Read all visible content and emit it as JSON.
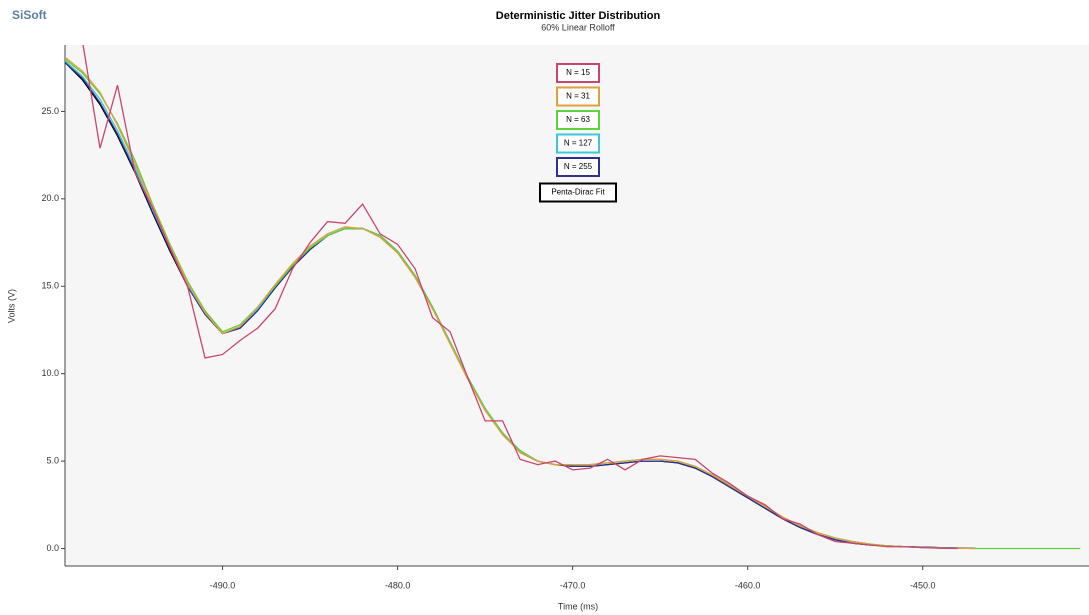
{
  "logo": "SiSoft",
  "chart_data": {
    "type": "line",
    "title": "Deterministic Jitter Distribution",
    "subtitle": "60% Linear Rolloff",
    "x_label": "Time (ms)",
    "y_label": "Volts (V)",
    "x": [
      -499,
      -498,
      -497,
      -496,
      -495,
      -494,
      -493,
      -492,
      -491,
      -490,
      -489,
      -488,
      -487,
      -486,
      -485,
      -484,
      -483,
      -482,
      -481,
      -480,
      -479,
      -478,
      -477,
      -476,
      -475,
      -474,
      -473,
      -472,
      -471,
      -470,
      -469,
      -468,
      -467,
      -466,
      -465,
      -464,
      -463,
      -462,
      -461,
      -460,
      -459,
      -458,
      -457,
      -456,
      -455,
      -454,
      -453,
      -452,
      -451,
      -450,
      -449,
      -448,
      -447,
      -446,
      -445,
      -444,
      -443,
      -442,
      -441
    ],
    "series": [
      {
        "name": "N = 15",
        "color": "#c8466e",
        "values": [
          30.5,
          29.0,
          22.9,
          26.5,
          21.5,
          19.5,
          17.2,
          15.0,
          10.9,
          11.1,
          11.9,
          12.6,
          13.7,
          16.0,
          17.5,
          18.7,
          18.6,
          19.7,
          18.0,
          17.4,
          16.0,
          13.2,
          12.4,
          9.8,
          7.3,
          7.3,
          5.1,
          4.8,
          5.0,
          4.5,
          4.6,
          5.1,
          4.5,
          5.1,
          5.3,
          5.2,
          5.1,
          4.3,
          3.7,
          3.0,
          2.5,
          1.7,
          1.4,
          0.8,
          0.4,
          0.3,
          0.2,
          0.1,
          0.1,
          0.05,
          0.02,
          0.0,
          null,
          null,
          null,
          null,
          null,
          null,
          null
        ]
      },
      {
        "name": "N = 31",
        "color": "#e0a040",
        "values": [
          28.1,
          27.3,
          26.1,
          24.2,
          22.0,
          19.6,
          17.3,
          15.2,
          13.5,
          12.3,
          12.7,
          13.8,
          15.1,
          16.3,
          17.3,
          18.0,
          18.4,
          18.3,
          17.8,
          16.9,
          15.5,
          13.7,
          11.7,
          9.7,
          7.9,
          6.5,
          5.5,
          5.0,
          4.8,
          4.8,
          4.8,
          4.9,
          5.0,
          5.1,
          5.1,
          5.0,
          4.7,
          4.2,
          3.6,
          3.0,
          2.4,
          1.8,
          1.3,
          0.9,
          0.6,
          0.4,
          0.25,
          0.15,
          0.1,
          0.05,
          0.03,
          0.02,
          0.0,
          null,
          null,
          null,
          null,
          null,
          null
        ]
      },
      {
        "name": "N = 63",
        "color": "#5fd33b",
        "values": [
          28.0,
          27.2,
          26.0,
          24.3,
          22.2,
          19.7,
          17.4,
          15.3,
          13.6,
          12.4,
          12.8,
          13.8,
          15.0,
          16.2,
          17.2,
          17.9,
          18.3,
          18.3,
          17.9,
          17.0,
          15.6,
          13.8,
          11.8,
          9.8,
          8.0,
          6.6,
          5.6,
          5.0,
          4.8,
          4.8,
          4.8,
          4.9,
          5.0,
          5.1,
          5.1,
          5.0,
          4.7,
          4.2,
          3.6,
          3.0,
          2.4,
          1.8,
          1.3,
          0.9,
          0.6,
          0.4,
          0.25,
          0.15,
          0.1,
          0.05,
          0.03,
          0.02,
          0.0,
          0.0,
          0.0,
          0.0,
          0.0,
          0.0,
          0.0
        ]
      },
      {
        "name": "N = 127",
        "color": "#3cc8d8",
        "values": [
          27.9,
          27.0,
          25.7,
          23.9,
          21.8,
          19.4,
          17.2,
          15.1,
          13.5,
          12.3,
          12.7,
          13.7,
          15.0,
          16.2,
          17.2,
          17.9,
          18.3,
          18.3,
          17.9,
          17.0,
          15.6,
          13.8,
          11.8,
          9.8,
          8.0,
          6.6,
          5.6,
          5.0,
          4.8,
          4.8,
          4.8,
          4.9,
          5.0,
          5.1,
          5.1,
          5.0,
          4.7,
          4.2,
          3.6,
          3.0,
          2.4,
          1.8,
          1.3,
          0.9,
          0.6,
          0.4,
          0.25,
          0.15,
          0.1,
          0.06,
          0.04,
          0.02,
          0.0,
          null,
          null,
          null,
          null,
          null,
          null
        ]
      },
      {
        "name": "N = 255",
        "color": "#303090",
        "values": [
          27.8,
          26.9,
          25.5,
          23.7,
          21.6,
          19.3,
          17.1,
          15.0,
          13.4,
          12.3,
          12.6,
          13.6,
          14.9,
          16.1,
          17.1,
          17.9,
          18.3,
          18.3,
          17.9,
          17.0,
          15.6,
          13.8,
          11.8,
          9.8,
          8.0,
          6.6,
          5.5,
          5.0,
          4.8,
          4.7,
          4.7,
          4.8,
          4.9,
          5.0,
          5.0,
          4.9,
          4.6,
          4.1,
          3.5,
          2.9,
          2.3,
          1.7,
          1.2,
          0.8,
          0.5,
          0.3,
          0.2,
          0.15,
          0.1,
          0.08,
          0.05,
          0.03,
          0.02,
          null,
          null,
          null,
          null,
          null,
          null
        ]
      },
      {
        "name": "Penta-Dirac Fit",
        "color": "#000000",
        "values": [
          27.8,
          26.8,
          25.4,
          23.6,
          21.5,
          19.2,
          17.0,
          15.0,
          13.4,
          12.3,
          12.6,
          13.6,
          14.9,
          16.1,
          17.1,
          17.9,
          18.3,
          18.3,
          17.9,
          17.0,
          15.6,
          13.8,
          11.8,
          9.8,
          8.0,
          6.6,
          5.5,
          5.0,
          4.8,
          4.7,
          4.7,
          4.8,
          4.9,
          5.0,
          5.0,
          4.9,
          4.6,
          4.1,
          3.5,
          2.9,
          2.3,
          1.7,
          1.2,
          0.8,
          0.5,
          0.3,
          0.2,
          0.15,
          0.1,
          0.08,
          0.05,
          0.03,
          0.02,
          null,
          null,
          null,
          null,
          null,
          null
        ]
      }
    ],
    "xlim": [
      -499,
      -440.5
    ],
    "ylim": [
      -1,
      28.8
    ],
    "xticks": [
      {
        "value": -490,
        "label": "-490.0"
      },
      {
        "value": -480,
        "label": "-480.0"
      },
      {
        "value": -470,
        "label": "-470.0"
      },
      {
        "value": -460,
        "label": "-460.0"
      },
      {
        "value": -450,
        "label": "-450.0"
      }
    ],
    "yticks": [
      {
        "value": 0,
        "label": "0.0"
      },
      {
        "value": 5,
        "label": "5.0"
      },
      {
        "value": 10,
        "label": "10.0"
      },
      {
        "value": 15,
        "label": "15.0"
      },
      {
        "value": 20,
        "label": "20.0"
      },
      {
        "value": 25,
        "label": "25.0"
      }
    ],
    "grid": false
  }
}
